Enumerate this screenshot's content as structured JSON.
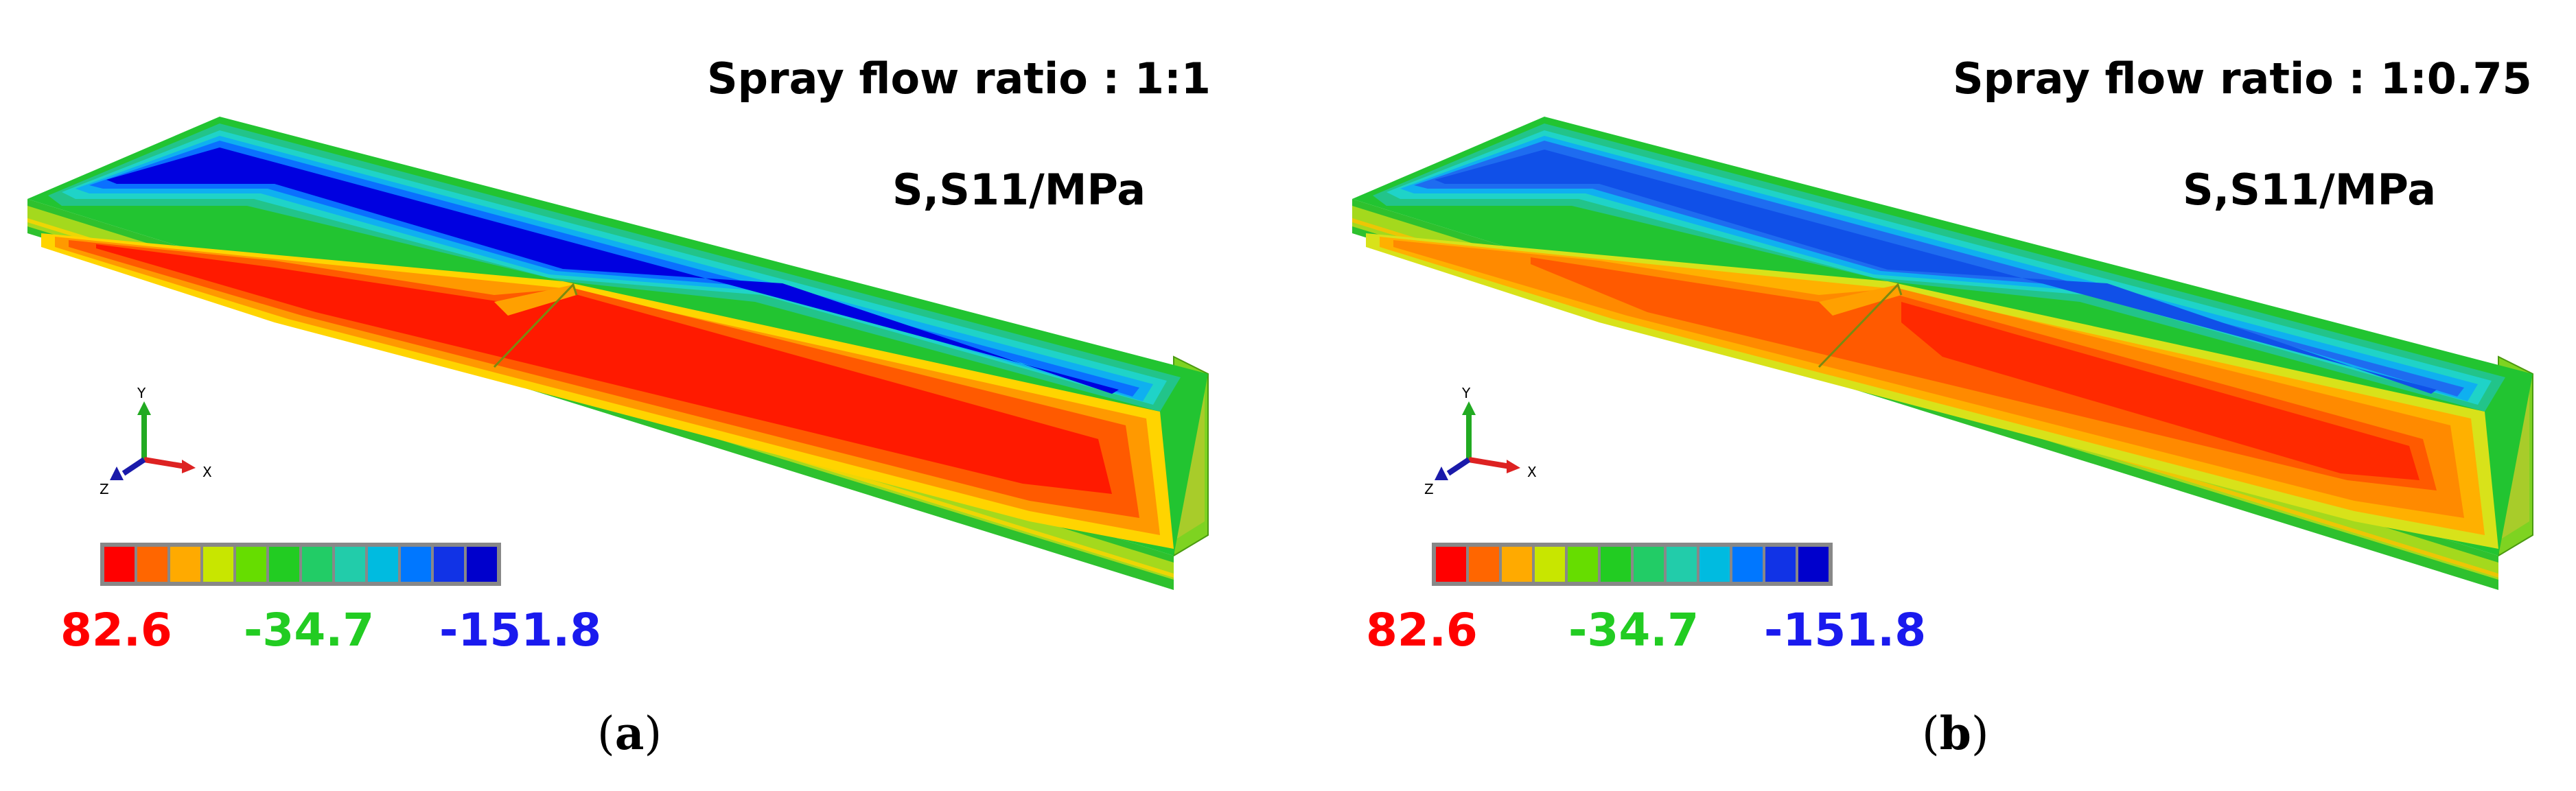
{
  "panels": [
    {
      "id": "a",
      "title": "Spray flow ratio : 1:1",
      "quantity": "S,S11/MPa",
      "caption": "a",
      "legend": {
        "max_label": "82.6",
        "mid_label": "-34.7",
        "min_label": "-151.8",
        "colors": [
          "#ff0000",
          "#ff6600",
          "#ffaa00",
          "#c8e600",
          "#66dd00",
          "#22cc22",
          "#22cc66",
          "#22ccaa",
          "#00bbe0",
          "#0077ff",
          "#1133e6",
          "#0000cc"
        ]
      }
    },
    {
      "id": "b",
      "title": "Spray flow ratio : 1:0.75",
      "quantity": "S,S11/MPa",
      "caption": "b",
      "legend": {
        "max_label": "82.6",
        "mid_label": "-34.7",
        "min_label": "-151.8",
        "colors": [
          "#ff0000",
          "#ff6600",
          "#ffaa00",
          "#c8e600",
          "#66dd00",
          "#22cc22",
          "#22cc66",
          "#22ccaa",
          "#00bbe0",
          "#0077ff",
          "#1133e6",
          "#0000cc"
        ]
      }
    }
  ],
  "triad": {
    "y": "Y",
    "x": "X",
    "z": "Z"
  },
  "colors": {
    "max": "#ff0000",
    "mid": "#22cc22",
    "min": "#1a1aee"
  }
}
